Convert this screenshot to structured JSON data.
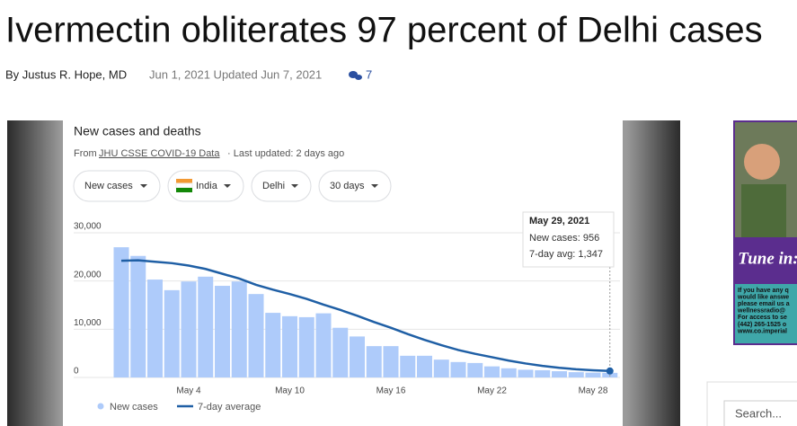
{
  "article": {
    "title": "Ivermectin obliterates 97 percent of Delhi cases",
    "author": "By Justus R. Hope, MD",
    "dates": "Jun 1, 2021 Updated Jun 7, 2021",
    "comments": "7"
  },
  "chart_data": {
    "type": "bar",
    "title": "New cases and deaths",
    "source_prefix": "From",
    "source_link": "JHU CSSE COVID-19 Data",
    "source_suffix": "· Last updated: 2 days ago",
    "filters": [
      "New cases",
      "India",
      "Delhi",
      "30 days"
    ],
    "categories": [
      null,
      null,
      null,
      null,
      "May 4",
      null,
      null,
      null,
      null,
      null,
      "May 10",
      null,
      null,
      null,
      null,
      null,
      "May 16",
      null,
      null,
      null,
      null,
      null,
      "May 22",
      null,
      null,
      null,
      null,
      null,
      "May 28",
      null
    ],
    "series": [
      {
        "name": "New cases",
        "color": "#aecbfa",
        "values": [
          27000,
          25200,
          20300,
          18100,
          19900,
          20900,
          19000,
          19900,
          17300,
          13400,
          12700,
          12500,
          13300,
          10300,
          8500,
          6500,
          6500,
          4500,
          4500,
          3700,
          3200,
          3000,
          2300,
          1900,
          1600,
          1500,
          1300,
          1100,
          1000,
          956
        ]
      },
      {
        "name": "7-day average",
        "color": "#1f5fa5",
        "type": "line",
        "values": [
          24200,
          24300,
          24000,
          23700,
          23200,
          22500,
          21500,
          20500,
          19200,
          18200,
          17300,
          16300,
          15100,
          14000,
          12800,
          11500,
          10300,
          9000,
          7800,
          6700,
          5700,
          4900,
          4200,
          3500,
          2900,
          2400,
          2000,
          1700,
          1500,
          1347
        ]
      }
    ],
    "ylim": [
      0,
      30000
    ],
    "yticks": [
      0,
      {
        "value": 10000,
        "label": "10,000"
      },
      {
        "value": 20000,
        "label": "20,000"
      },
      {
        "value": 30000,
        "label": "30,000"
      }
    ],
    "grid": true,
    "tooltip": {
      "date": "May 29, 2021",
      "lines": [
        "New cases: 956",
        "7-day avg: 1,347"
      ]
    }
  },
  "sidebar": {
    "ad_heading": "Tune in:",
    "ad_lines": [
      "If you have any q",
      "would like answe",
      "please email us a",
      "wellnessradio@",
      "For access to se",
      "(442) 265-1525 o",
      "www.co.imperial"
    ],
    "search_placeholder": "Search..."
  }
}
